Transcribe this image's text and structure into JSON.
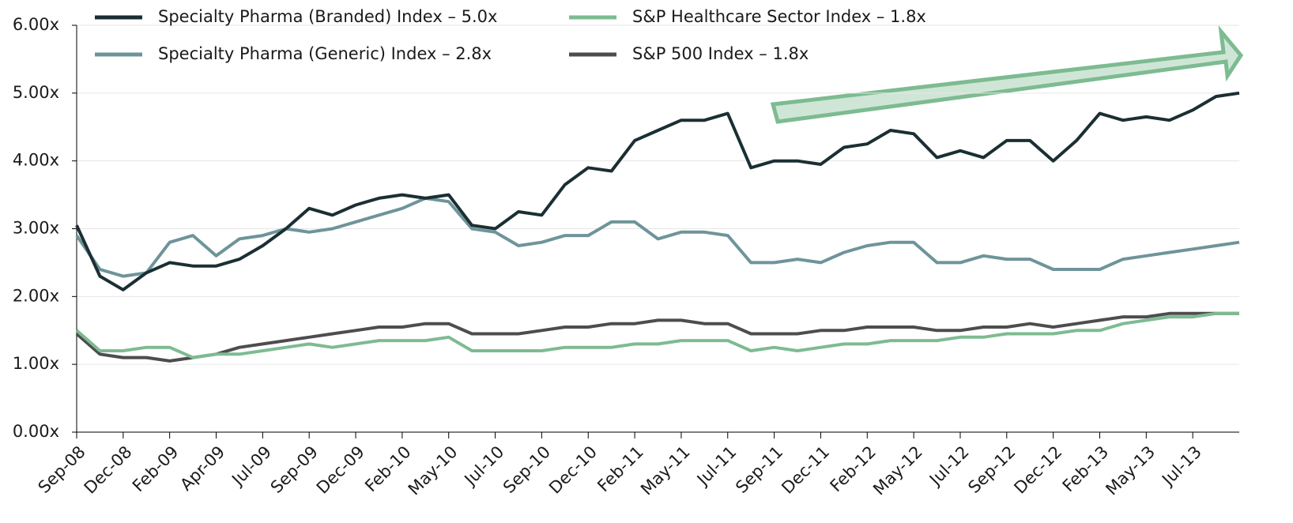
{
  "chart_data": {
    "type": "line",
    "categories": [
      "Sep-08",
      null,
      "Dec-08",
      null,
      "Feb-09",
      null,
      "Apr-09",
      null,
      "Jul-09",
      null,
      "Sep-09",
      null,
      "Dec-09",
      null,
      "Feb-10",
      null,
      "May-10",
      null,
      "Jul-10",
      null,
      "Sep-10",
      null,
      "Dec-10",
      null,
      "Feb-11",
      null,
      "May-11",
      null,
      "Jul-11",
      null,
      "Sep-11",
      null,
      "Dec-11",
      null,
      "Feb-12",
      null,
      "May-12",
      null,
      "Jul-12",
      null,
      "Sep-12",
      null,
      "Dec-12",
      null,
      "Feb-13",
      null,
      "May-13",
      null,
      "Jul-13",
      null,
      null
    ],
    "series": [
      {
        "name": "Specialty Pharma (Branded) Index – 5.0x",
        "color": "#1b2f33",
        "values": [
          3.05,
          2.3,
          2.1,
          2.35,
          2.5,
          2.45,
          2.45,
          2.55,
          2.75,
          3.0,
          3.3,
          3.2,
          3.35,
          3.45,
          3.5,
          3.45,
          3.5,
          3.05,
          3.0,
          3.25,
          3.2,
          3.65,
          3.9,
          3.85,
          4.3,
          4.45,
          4.6,
          4.6,
          4.7,
          3.9,
          4.0,
          4.0,
          3.95,
          4.2,
          4.25,
          4.45,
          4.4,
          4.05,
          4.15,
          4.05,
          4.3,
          4.3,
          4.0,
          4.3,
          4.7,
          4.6,
          4.65,
          4.6,
          4.75,
          4.95,
          5.0
        ]
      },
      {
        "name": "Specialty Pharma (Generic) Index – 2.8x",
        "color": "#6e949a",
        "values": [
          2.9,
          2.4,
          2.3,
          2.35,
          2.8,
          2.9,
          2.6,
          2.85,
          2.9,
          3.0,
          2.95,
          3.0,
          3.1,
          3.2,
          3.3,
          3.45,
          3.4,
          3.0,
          2.95,
          2.75,
          2.8,
          2.9,
          2.9,
          3.1,
          3.1,
          2.85,
          2.95,
          2.95,
          2.9,
          2.5,
          2.5,
          2.55,
          2.5,
          2.65,
          2.75,
          2.8,
          2.8,
          2.5,
          2.5,
          2.6,
          2.55,
          2.55,
          2.4,
          2.4,
          2.4,
          2.55,
          2.6,
          2.65,
          2.7,
          2.75,
          2.8
        ]
      },
      {
        "name": "S&P Healthcare Sector Index – 1.8x",
        "color": "#7dbb91",
        "values": [
          1.5,
          1.2,
          1.2,
          1.25,
          1.25,
          1.1,
          1.15,
          1.15,
          1.2,
          1.25,
          1.3,
          1.25,
          1.3,
          1.35,
          1.35,
          1.35,
          1.4,
          1.2,
          1.2,
          1.2,
          1.2,
          1.25,
          1.25,
          1.25,
          1.3,
          1.3,
          1.35,
          1.35,
          1.35,
          1.2,
          1.25,
          1.2,
          1.25,
          1.3,
          1.3,
          1.35,
          1.35,
          1.35,
          1.4,
          1.4,
          1.45,
          1.45,
          1.45,
          1.5,
          1.5,
          1.6,
          1.65,
          1.7,
          1.7,
          1.75,
          1.75
        ]
      },
      {
        "name": "S&P 500 Index – 1.8x",
        "color": "#4d4d4d",
        "values": [
          1.45,
          1.15,
          1.1,
          1.1,
          1.05,
          1.1,
          1.15,
          1.25,
          1.3,
          1.35,
          1.4,
          1.45,
          1.5,
          1.55,
          1.55,
          1.6,
          1.6,
          1.45,
          1.45,
          1.45,
          1.5,
          1.55,
          1.55,
          1.6,
          1.6,
          1.65,
          1.65,
          1.6,
          1.6,
          1.45,
          1.45,
          1.45,
          1.5,
          1.5,
          1.55,
          1.55,
          1.55,
          1.5,
          1.5,
          1.55,
          1.55,
          1.6,
          1.55,
          1.6,
          1.65,
          1.7,
          1.7,
          1.75,
          1.75,
          1.75,
          1.75
        ]
      }
    ],
    "ylim": [
      0,
      6
    ],
    "yticks": [
      {
        "value": 0,
        "label": "0.00x"
      },
      {
        "value": 1,
        "label": "1.00x"
      },
      {
        "value": 2,
        "label": "2.00x"
      },
      {
        "value": 3,
        "label": "3.00x"
      },
      {
        "value": 4,
        "label": "4.00x"
      },
      {
        "value": 5,
        "label": "5.00x"
      },
      {
        "value": 6,
        "label": "6.00x"
      }
    ],
    "grid": true
  }
}
